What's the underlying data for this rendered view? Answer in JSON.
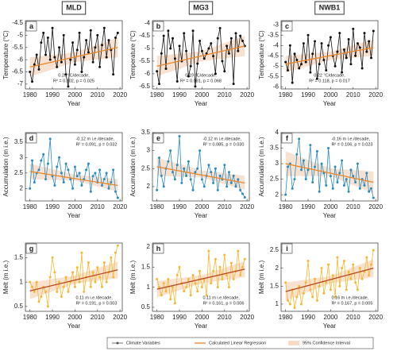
{
  "columns": [
    "MLD",
    "MG3",
    "NWB1"
  ],
  "legend": [
    {
      "name": "Climate Variables",
      "color": "#555555"
    },
    {
      "name": "Calculated Linear Regression",
      "color": "#e8862a"
    },
    {
      "name": "95% Confidence Interval",
      "color": "#f6dcc8"
    }
  ],
  "chart_data": [
    {
      "type": "line",
      "label": "a",
      "ylabel": "Temperature (°C)",
      "xlabel": "Year",
      "color": "#111111",
      "trend_color": "#e8862a",
      "band_color": "#f6dcc8",
      "annotation": [
        "0.20 °C/decade,",
        "R² = 0.102, p = 0.025"
      ],
      "xlim": [
        1978,
        2021
      ],
      "xticks": [
        1980,
        1990,
        2000,
        2010,
        2020
      ],
      "ylim": [
        -7.2,
        -4.4
      ],
      "yticks": [
        -7,
        -6.5,
        -6,
        -5.5,
        -5,
        -4.5
      ],
      "x": [
        1980,
        1981,
        1982,
        1983,
        1984,
        1985,
        1986,
        1987,
        1988,
        1989,
        1990,
        1991,
        1992,
        1993,
        1994,
        1995,
        1996,
        1997,
        1998,
        1999,
        2000,
        2001,
        2002,
        2003,
        2004,
        2005,
        2006,
        2007,
        2008,
        2009,
        2010,
        2011,
        2012,
        2013,
        2014,
        2015,
        2016,
        2017,
        2018,
        2019
      ],
      "values": [
        -6.5,
        -6.9,
        -6.2,
        -5.8,
        -6.4,
        -5.3,
        -4.9,
        -5.8,
        -5.1,
        -6.0,
        -4.7,
        -5.9,
        -6.3,
        -5.5,
        -6.1,
        -5.0,
        -6.6,
        -7.1,
        -6.0,
        -5.3,
        -6.2,
        -5.6,
        -4.9,
        -6.5,
        -5.9,
        -5.2,
        -5.7,
        -4.8,
        -6.1,
        -5.5,
        -5.0,
        -6.3,
        -5.4,
        -4.7,
        -5.9,
        -5.2,
        -5.6,
        -6.6,
        -5.1,
        -4.9
      ],
      "trend_x": [
        1980,
        2019
      ],
      "trend": [
        -6.3,
        -5.5
      ],
      "band_x": [
        1980,
        2000,
        2019
      ],
      "band_lower": [
        -6.7,
        -6.1,
        -5.9
      ],
      "band_upper": [
        -5.9,
        -5.7,
        -5.1
      ]
    },
    {
      "type": "line",
      "label": "b",
      "ylabel": "Temperature (°C)",
      "xlabel": "Year",
      "color": "#111111",
      "trend_color": "#e8862a",
      "band_color": "#f6dcc8",
      "annotation": [
        "0.19 °C/decade,",
        "R² = 0.081, p = 0.068"
      ],
      "xlim": [
        1978,
        2021
      ],
      "xticks": [
        1980,
        1990,
        2000,
        2010,
        2020
      ],
      "ylim": [
        -6.6,
        -3.9
      ],
      "yticks": [
        -6.5,
        -6,
        -5.5,
        -5,
        -4.5,
        -4
      ],
      "x": [
        1980,
        1981,
        1982,
        1983,
        1984,
        1985,
        1986,
        1987,
        1988,
        1989,
        1990,
        1991,
        1992,
        1993,
        1994,
        1995,
        1996,
        1997,
        1998,
        1999,
        2000,
        2001,
        2002,
        2003,
        2004,
        2005,
        2006,
        2007,
        2008,
        2009,
        2010,
        2011,
        2012,
        2013,
        2014,
        2015,
        2016,
        2017,
        2018,
        2019
      ],
      "values": [
        -5.9,
        -6.4,
        -5.2,
        -4.5,
        -5.8,
        -4.3,
        -5.0,
        -4.6,
        -5.4,
        -6.3,
        -4.9,
        -5.5,
        -4.4,
        -5.1,
        -6.1,
        -5.7,
        -4.3,
        -6.5,
        -5.6,
        -4.7,
        -5.1,
        -5.4,
        -5.2,
        -5.0,
        -4.8,
        -5.3,
        -6.0,
        -4.6,
        -4.2,
        -5.5,
        -5.9,
        -4.9,
        -5.2,
        -4.6,
        -6.4,
        -4.4,
        -5.1,
        -4.5,
        -4.7,
        -4.9
      ],
      "trend_x": [
        1980,
        2019
      ],
      "trend": [
        -5.7,
        -4.9
      ],
      "band_x": [
        1980,
        2000,
        2019
      ],
      "band_lower": [
        -6.1,
        -5.5,
        -5.3
      ],
      "band_upper": [
        -5.3,
        -5.1,
        -4.5
      ]
    },
    {
      "type": "line",
      "label": "c",
      "ylabel": "Temperature (°C)",
      "xlabel": "Year",
      "color": "#111111",
      "trend_color": "#e8862a",
      "band_color": "#f6dcc8",
      "annotation": [
        "0.22 °C/decade,",
        "R² = 0.118, p = 0.017"
      ],
      "xlim": [
        1978,
        2021
      ],
      "xticks": [
        1980,
        1990,
        2000,
        2010,
        2020
      ],
      "ylim": [
        -6.1,
        -2.8
      ],
      "yticks": [
        -6,
        -5.5,
        -5,
        -4.5,
        -4,
        -3.5,
        -3
      ],
      "x": [
        1980,
        1981,
        1982,
        1983,
        1984,
        1985,
        1986,
        1987,
        1988,
        1989,
        1990,
        1991,
        1992,
        1993,
        1994,
        1995,
        1996,
        1997,
        1998,
        1999,
        2000,
        2001,
        2002,
        2003,
        2004,
        2005,
        2006,
        2007,
        2008,
        2009,
        2010,
        2011,
        2012,
        2013,
        2014,
        2015,
        2016,
        2017,
        2018,
        2019
      ],
      "values": [
        -4.8,
        -5.2,
        -4.0,
        -5.8,
        -4.4,
        -4.7,
        -5.1,
        -4.9,
        -3.9,
        -4.8,
        -3.5,
        -5.3,
        -4.4,
        -3.8,
        -5.6,
        -4.9,
        -3.9,
        -4.7,
        -5.2,
        -4.0,
        -3.6,
        -4.5,
        -5.0,
        -4.3,
        -3.4,
        -5.3,
        -4.2,
        -4.6,
        -3.7,
        -4.9,
        -3.2,
        -4.5,
        -3.9,
        -4.1,
        -5.1,
        -3.4,
        -4.3,
        -3.8,
        -4.6,
        -3.3
      ],
      "trend_x": [
        1980,
        2019
      ],
      "trend": [
        -4.9,
        -4.1
      ],
      "band_x": [
        1980,
        2000,
        2019
      ],
      "band_lower": [
        -5.3,
        -4.7,
        -4.5
      ],
      "band_upper": [
        -4.5,
        -4.3,
        -3.7
      ]
    },
    {
      "type": "line",
      "label": "d",
      "ylabel": "Accumulation (m i.e.)",
      "xlabel": "Year",
      "color": "#2a8bbf",
      "trend_color": "#e8862a",
      "band_color": "#f6dcc8",
      "annotation": [
        "-0.12 m i.e./decade,",
        "R² = 0.091, p = 0.032"
      ],
      "xlim": [
        1978,
        2021
      ],
      "xticks": [
        1980,
        1990,
        2000,
        2010,
        2020
      ],
      "ylim": [
        1.6,
        3.8
      ],
      "yticks": [
        2,
        2.5,
        3,
        3.5
      ],
      "x": [
        1980,
        1981,
        1982,
        1983,
        1984,
        1985,
        1986,
        1987,
        1988,
        1989,
        1990,
        1991,
        1992,
        1993,
        1994,
        1995,
        1996,
        1997,
        1998,
        1999,
        2000,
        2001,
        2002,
        2003,
        2004,
        2005,
        2006,
        2007,
        2008,
        2009,
        2010,
        2011,
        2012,
        2013,
        2014,
        2015,
        2016,
        2017,
        2018,
        2019
      ],
      "values": [
        2.0,
        2.9,
        2.2,
        2.5,
        2.6,
        2.9,
        3.1,
        2.3,
        2.8,
        3.6,
        2.4,
        2.1,
        2.7,
        3.0,
        2.5,
        2.2,
        2.8,
        2.6,
        2.3,
        2.0,
        2.7,
        2.4,
        2.5,
        2.1,
        2.3,
        2.6,
        2.8,
        1.9,
        2.4,
        2.5,
        2.2,
        2.6,
        2.1,
        2.3,
        2.5,
        2.0,
        2.2,
        2.6,
        1.9,
        1.7
      ],
      "trend_x": [
        1980,
        2019
      ],
      "trend": [
        2.55,
        2.1
      ],
      "band_x": [
        1980,
        2000,
        2019
      ],
      "band_lower": [
        2.3,
        2.25,
        1.9
      ],
      "band_upper": [
        2.8,
        2.45,
        2.3
      ]
    },
    {
      "type": "line",
      "label": "e",
      "ylabel": "Accumulation (m i.e.)",
      "xlabel": "Year",
      "color": "#2a8bbf",
      "trend_color": "#e8862a",
      "band_color": "#f6dcc8",
      "annotation": [
        "-0.12 m i.e./decade,",
        "R² = 0.085, p = 0.030"
      ],
      "xlim": [
        1978,
        2021
      ],
      "xticks": [
        1980,
        1990,
        2000,
        2010,
        2020
      ],
      "ylim": [
        1.6,
        3.5
      ],
      "yticks": [
        2,
        2.5,
        3,
        3.5
      ],
      "x": [
        1980,
        1981,
        1982,
        1983,
        1984,
        1985,
        1986,
        1987,
        1988,
        1989,
        1990,
        1991,
        1992,
        1993,
        1994,
        1995,
        1996,
        1997,
        1998,
        1999,
        2000,
        2001,
        2002,
        2003,
        2004,
        2005,
        2006,
        2007,
        2008,
        2009,
        2010,
        2011,
        2012,
        2013,
        2014,
        2015,
        2016,
        2017,
        2018,
        2019
      ],
      "values": [
        1.9,
        2.8,
        2.3,
        2.0,
        2.5,
        2.7,
        3.0,
        2.4,
        2.2,
        2.6,
        3.4,
        2.1,
        2.5,
        2.3,
        2.7,
        2.2,
        1.9,
        2.4,
        2.5,
        3.0,
        2.2,
        2.0,
        2.3,
        2.6,
        2.4,
        2.1,
        2.5,
        1.9,
        2.3,
        2.2,
        2.6,
        2.0,
        2.4,
        2.1,
        2.3,
        2.0,
        2.2,
        1.9,
        1.8,
        1.7
      ],
      "trend_x": [
        1980,
        2019
      ],
      "trend": [
        2.55,
        2.1
      ],
      "band_x": [
        1980,
        2000,
        2019
      ],
      "band_lower": [
        2.3,
        2.25,
        1.9
      ],
      "band_upper": [
        2.8,
        2.45,
        2.3
      ]
    },
    {
      "type": "line",
      "label": "f",
      "ylabel": "Accumulation (m i.e.)",
      "xlabel": "Year",
      "color": "#2a8bbf",
      "trend_color": "#e8862a",
      "band_color": "#f6dcc8",
      "annotation": [
        "-0.16 m i.e./decade,",
        "R² = 0.106, p = 0.023"
      ],
      "xlim": [
        1978,
        2021
      ],
      "xticks": [
        1980,
        1990,
        2000,
        2010,
        2020
      ],
      "ylim": [
        1.8,
        4
      ],
      "yticks": [
        2,
        2.5,
        3,
        3.5,
        4
      ],
      "x": [
        1980,
        1981,
        1982,
        1983,
        1984,
        1985,
        1986,
        1987,
        1988,
        1989,
        1990,
        1991,
        1992,
        1993,
        1994,
        1995,
        1996,
        1997,
        1998,
        1999,
        2000,
        2001,
        2002,
        2003,
        2004,
        2005,
        2006,
        2007,
        2008,
        2009,
        2010,
        2011,
        2012,
        2013,
        2014,
        2015,
        2016,
        2017,
        2018,
        2019
      ],
      "values": [
        2.0,
        2.9,
        3.0,
        2.2,
        2.5,
        3.3,
        3.8,
        2.8,
        3.1,
        2.5,
        2.8,
        3.6,
        2.4,
        2.9,
        3.4,
        2.1,
        3.0,
        2.7,
        2.3,
        3.5,
        2.6,
        2.2,
        2.9,
        2.4,
        2.7,
        3.1,
        2.3,
        2.5,
        2.1,
        2.8,
        2.6,
        2.4,
        3.0,
        2.2,
        2.5,
        2.3,
        2.7,
        2.1,
        2.2,
        1.9
      ],
      "trend_x": [
        1980,
        2019
      ],
      "trend": [
        3.0,
        2.4
      ],
      "band_x": [
        1980,
        2000,
        2019
      ],
      "band_lower": [
        2.6,
        2.6,
        2.05
      ],
      "band_upper": [
        3.4,
        2.85,
        2.75
      ]
    },
    {
      "type": "line",
      "label": "g",
      "ylabel": "Melt (m i.e.)",
      "xlabel": "Year",
      "color": "#f5b82e",
      "trend_color": "#b8481c",
      "band_color": "#f6dcc8",
      "annotation": [
        "0.11 m i.e./decade,",
        "R² = 0.191, p = 0.003"
      ],
      "xlim": [
        1978,
        2021
      ],
      "xticks": [
        1980,
        1990,
        2000,
        2010,
        2020
      ],
      "ylim": [
        0.4,
        1.8
      ],
      "yticks": [
        0.5,
        1,
        1.5
      ],
      "x": [
        1980,
        1981,
        1982,
        1983,
        1984,
        1985,
        1986,
        1987,
        1988,
        1989,
        1990,
        1991,
        1992,
        1993,
        1994,
        1995,
        1996,
        1997,
        1998,
        1999,
        2000,
        2001,
        2002,
        2003,
        2004,
        2005,
        2006,
        2007,
        2008,
        2009,
        2010,
        2011,
        2012,
        2013,
        2014,
        2015,
        2016,
        2017,
        2018,
        2019
      ],
      "values": [
        1.0,
        0.9,
        0.8,
        1.0,
        0.6,
        0.7,
        0.9,
        0.8,
        0.5,
        1.1,
        1.5,
        1.2,
        0.8,
        1.0,
        0.7,
        0.9,
        1.1,
        0.8,
        1.0,
        1.2,
        0.9,
        1.3,
        1.0,
        1.6,
        0.8,
        1.1,
        1.4,
        0.9,
        1.2,
        1.0,
        1.3,
        1.1,
        0.9,
        1.4,
        1.0,
        1.2,
        1.5,
        1.1,
        1.6,
        1.75
      ],
      "trend_x": [
        1980,
        2019
      ],
      "trend": [
        0.82,
        1.25
      ],
      "band_x": [
        1980,
        2000,
        2019
      ],
      "band_lower": [
        0.65,
        0.97,
        1.08
      ],
      "band_upper": [
        0.99,
        1.13,
        1.42
      ]
    },
    {
      "type": "line",
      "label": "h",
      "ylabel": "Melt (m i.e.)",
      "xlabel": "Year",
      "color": "#f5b82e",
      "trend_color": "#b8481c",
      "band_color": "#f6dcc8",
      "annotation": [
        "0.11 m i.e./decade,",
        "R² = 0.161, p = 0.006"
      ],
      "xlim": [
        1978,
        2021
      ],
      "xticks": [
        1980,
        1990,
        2000,
        2010,
        2020
      ],
      "ylim": [
        0.4,
        2.1
      ],
      "yticks": [
        0.5,
        1,
        1.5,
        2
      ],
      "x": [
        1980,
        1981,
        1982,
        1983,
        1984,
        1985,
        1986,
        1987,
        1988,
        1989,
        1990,
        1991,
        1992,
        1993,
        1994,
        1995,
        1996,
        1997,
        1998,
        1999,
        2000,
        2001,
        2002,
        2003,
        2004,
        2005,
        2006,
        2007,
        2008,
        2009,
        2010,
        2011,
        2012,
        2013,
        2014,
        2015,
        2016,
        2017,
        2018,
        2019
      ],
      "values": [
        1.2,
        1.0,
        0.8,
        1.1,
        0.9,
        1.2,
        0.7,
        1.0,
        0.6,
        1.3,
        1.5,
        1.1,
        0.9,
        1.0,
        1.2,
        0.8,
        1.3,
        1.1,
        0.9,
        1.4,
        1.0,
        1.2,
        0.8,
        1.9,
        1.1,
        1.4,
        1.7,
        1.0,
        1.5,
        1.2,
        1.8,
        1.3,
        1.0,
        1.6,
        1.2,
        1.4,
        1.9,
        1.3,
        1.5,
        1.7
      ],
      "trend_x": [
        1980,
        2019
      ],
      "trend": [
        0.95,
        1.45
      ],
      "band_x": [
        1980,
        2000,
        2019
      ],
      "band_lower": [
        0.75,
        1.1,
        1.25
      ],
      "band_upper": [
        1.15,
        1.3,
        1.65
      ]
    },
    {
      "type": "line",
      "label": "i",
      "ylabel": "Melt (m i.e.)",
      "xlabel": "Year",
      "color": "#f5b82e",
      "trend_color": "#b8481c",
      "band_color": "#f6dcc8",
      "annotation": [
        "0.16 m i.e./decade,",
        "R² = 0.167, p = 0.005"
      ],
      "xlim": [
        1978,
        2021
      ],
      "xticks": [
        1980,
        1990,
        2000,
        2010,
        2020
      ],
      "ylim": [
        0.8,
        2.7
      ],
      "yticks": [
        1,
        1.5,
        2,
        2.5
      ],
      "x": [
        1980,
        1981,
        1982,
        1983,
        1984,
        1985,
        1986,
        1987,
        1988,
        1989,
        1990,
        1991,
        1992,
        1993,
        1994,
        1995,
        1996,
        1997,
        1998,
        1999,
        2000,
        2001,
        2002,
        2003,
        2004,
        2005,
        2006,
        2007,
        2008,
        2009,
        2010,
        2011,
        2012,
        2013,
        2014,
        2015,
        2016,
        2017,
        2018,
        2019
      ],
      "values": [
        1.6,
        1.1,
        1.0,
        1.4,
        0.9,
        1.2,
        1.5,
        1.0,
        1.3,
        1.6,
        2.2,
        1.4,
        1.2,
        1.7,
        1.1,
        1.5,
        2.0,
        1.3,
        1.6,
        2.1,
        1.4,
        1.8,
        1.2,
        2.3,
        1.5,
        2.0,
        2.2,
        1.4,
        1.9,
        1.7,
        2.1,
        1.6,
        1.4,
        2.0,
        1.7,
        1.9,
        2.3,
        1.8,
        2.1,
        2.5
      ],
      "trend_x": [
        1980,
        2019
      ],
      "trend": [
        1.35,
        2.0
      ],
      "band_x": [
        1980,
        2000,
        2019
      ],
      "band_lower": [
        1.1,
        1.58,
        1.75
      ],
      "band_upper": [
        1.6,
        1.78,
        2.25
      ]
    }
  ]
}
